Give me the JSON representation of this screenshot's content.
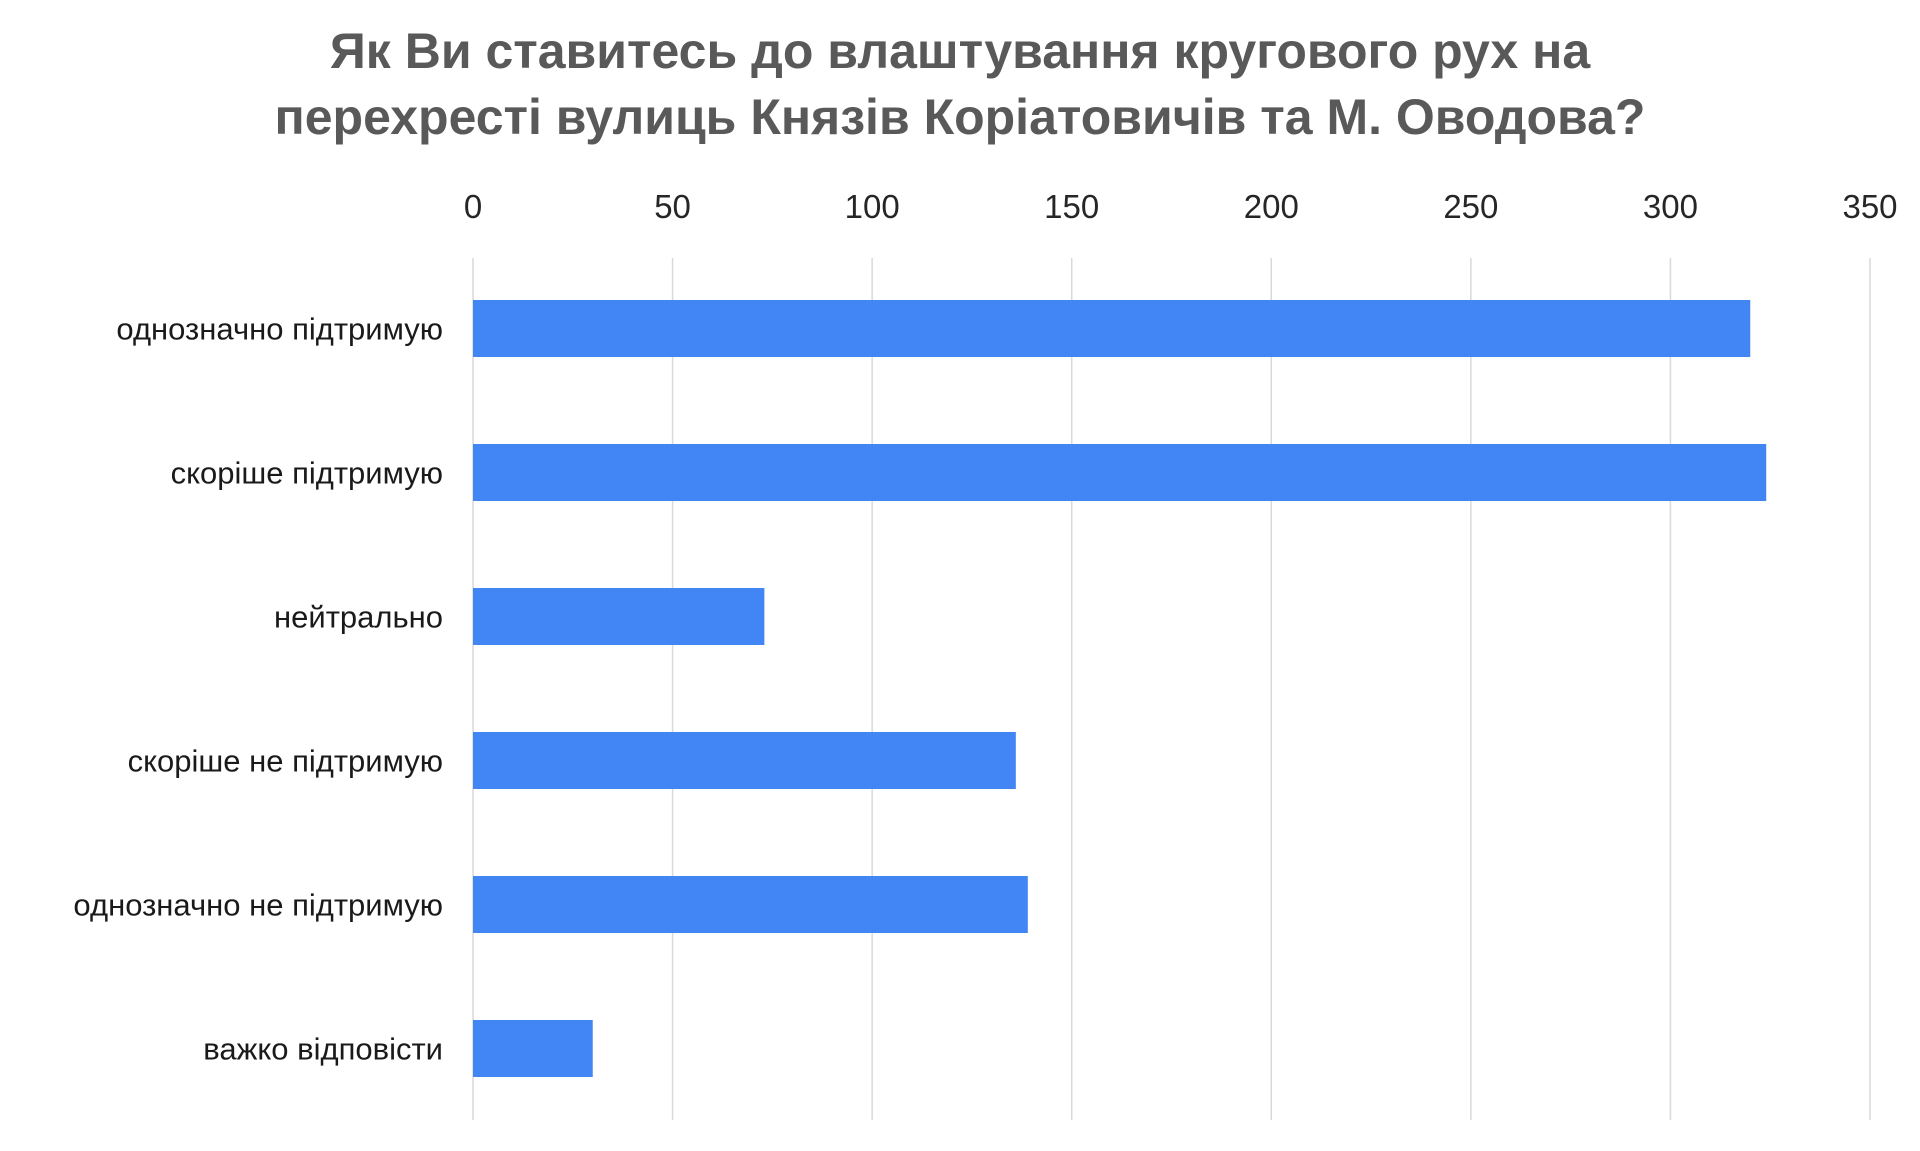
{
  "chart_data": {
    "type": "bar",
    "orientation": "horizontal",
    "title_lines": [
      "Як Ви ставитесь до влаштування кругового рух на",
      "перехресті вулиць Князів Коріатовичів та М. Оводова?"
    ],
    "categories": [
      "однозначно підтримую",
      "скоріше підтримую",
      "нейтрально",
      "скоріше не підтримую",
      "однозначно не підтримую",
      "важко відповісти"
    ],
    "values": [
      320,
      324,
      73,
      136,
      139,
      30
    ],
    "xlim": [
      0,
      350
    ],
    "ticks": [
      0,
      50,
      100,
      150,
      200,
      250,
      300,
      350
    ],
    "tick_labels": [
      "0",
      "50",
      "100",
      "150",
      "200",
      "250",
      "300",
      "350"
    ],
    "axis_position": "top",
    "grid": true,
    "bar_color": "#4285f4",
    "xlabel": "",
    "ylabel": ""
  }
}
